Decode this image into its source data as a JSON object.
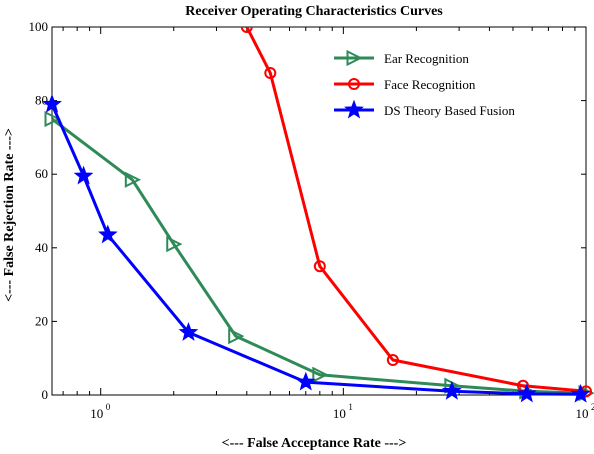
{
  "chart_data": {
    "type": "line",
    "title": "Receiver Operating Characteristics Curves",
    "xlabel": "<--- False Acceptance Rate --->",
    "ylabel": "<--- False Rejection Rate --->",
    "xscale": "log",
    "xlim": [
      0.63,
      100
    ],
    "ylim": [
      0,
      100
    ],
    "xticks": [
      {
        "base": "10",
        "exp": "0",
        "value": 1
      },
      {
        "base": "10",
        "exp": "1",
        "value": 10
      },
      {
        "base": "10",
        "exp": "2",
        "value": 100
      }
    ],
    "yticks": [
      0,
      20,
      40,
      60,
      80,
      100
    ],
    "legend_position": "top-right",
    "grid": false,
    "series": [
      {
        "name": "Ear Recognition",
        "color": "#2e8b57",
        "marker": "triangle-right",
        "x": [
          0.63,
          1.35,
          2.0,
          3.6,
          8.0,
          28.0,
          57.0,
          100
        ],
        "y": [
          75,
          58.5,
          41,
          16,
          5.5,
          2.5,
          1.0,
          0.5
        ]
      },
      {
        "name": "Face Recognition",
        "color": "#ff0000",
        "marker": "circle",
        "x": [
          4.0,
          5.0,
          8.0,
          16.0,
          55.0,
          100
        ],
        "y": [
          100,
          87.5,
          35,
          9.5,
          2.5,
          1.0
        ]
      },
      {
        "name": "DS Theory Based Fusion",
        "color": "#0000ff",
        "marker": "star",
        "x": [
          0.63,
          0.85,
          1.07,
          2.3,
          7.0,
          28.0,
          57.0,
          95.0
        ],
        "y": [
          79,
          59.5,
          43.5,
          17,
          3.5,
          1.0,
          0.3,
          0.2
        ]
      }
    ]
  }
}
